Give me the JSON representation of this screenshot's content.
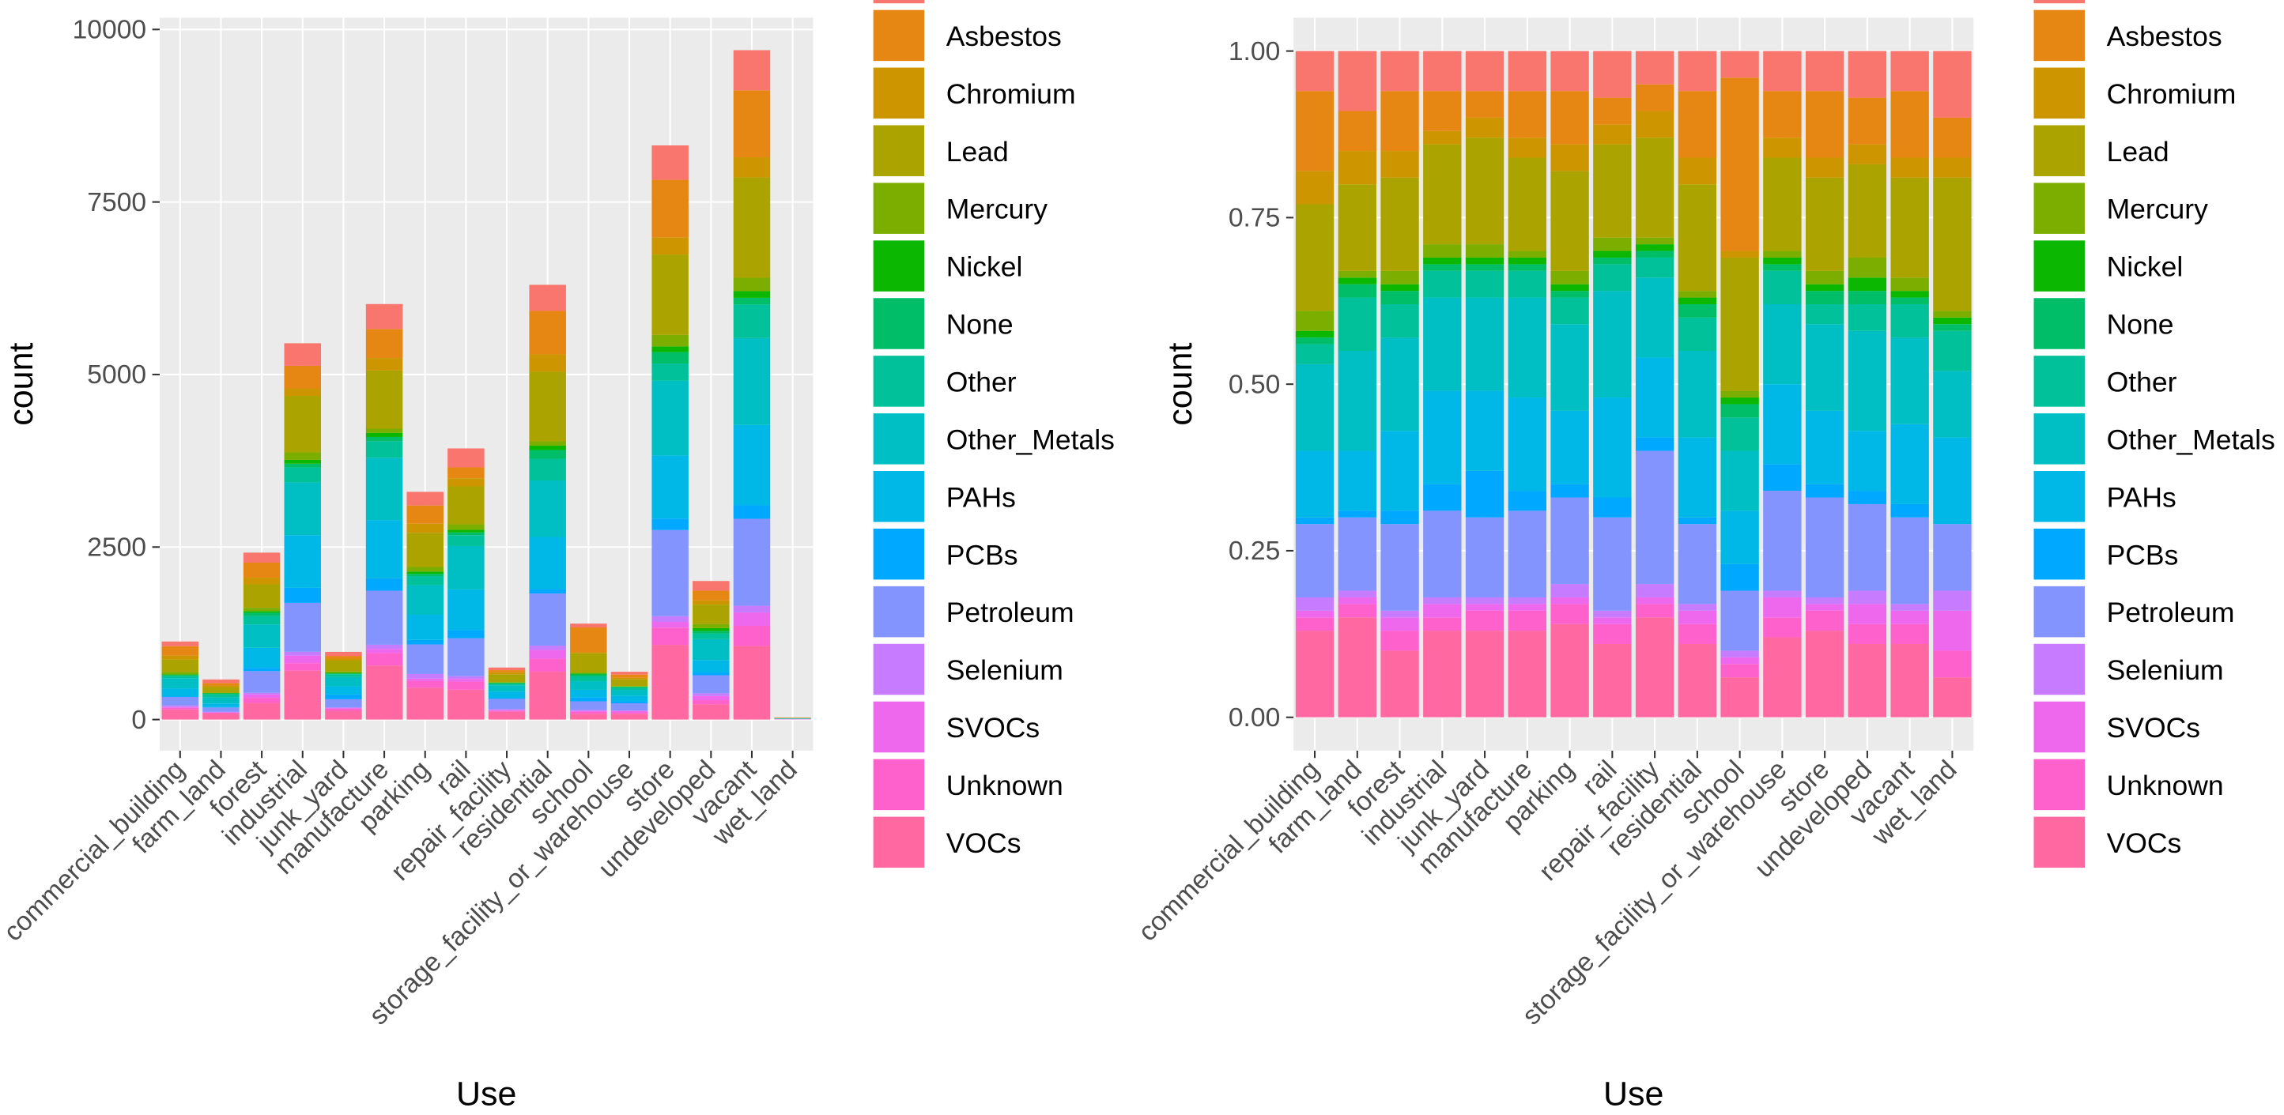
{
  "chart_data": [
    {
      "type": "bar",
      "stacked": true,
      "xlabel": "Use",
      "ylabel": "count",
      "grid": true,
      "categories": [
        "commercial_building",
        "farm_land",
        "forest",
        "industrial",
        "junk_yard",
        "manufacture",
        "parking",
        "rail",
        "repair_facility",
        "residential",
        "school",
        "storage_facility_or_warehouse",
        "store",
        "undeveloped",
        "vacant",
        "wet_land"
      ],
      "ylim": [
        -450,
        10170
      ],
      "yticks": [
        0,
        2500,
        5000,
        7500,
        10000
      ],
      "series": [
        {
          "name": null,
          "color": "#F8766D",
          "values": [
            68,
            52,
            145,
            327,
            59,
            361,
            198,
            275,
            38,
            378,
            56,
            41,
            499,
            141,
            582,
            3
          ]
        },
        {
          "name": "Asbestos",
          "color": "#E68613",
          "values": [
            136,
            35,
            218,
            327,
            39,
            421,
            264,
            157,
            30,
            630,
            361,
            48,
            832,
            141,
            970,
            2
          ]
        },
        {
          "name": "Chromium",
          "color": "#CD9600",
          "values": [
            57,
            29,
            97,
            109,
            29,
            181,
            132,
            118,
            30,
            252,
            14,
            21,
            250,
            60,
            291,
            1
          ]
        },
        {
          "name": "Lead",
          "color": "#ABA300",
          "values": [
            181,
            75,
            339,
            818,
            157,
            843,
            495,
            550,
            113,
            1008,
            278,
            97,
            1165,
            281,
            1455,
            6
          ]
        },
        {
          "name": "Mercury",
          "color": "#7CAE00",
          "values": [
            34,
            6,
            48,
            109,
            20,
            60,
            66,
            79,
            8,
            63,
            14,
            7,
            166,
            60,
            194,
            0
          ]
        },
        {
          "name": "Nickel",
          "color": "#0CB702",
          "values": [
            11,
            6,
            24,
            55,
            10,
            60,
            33,
            39,
            8,
            63,
            14,
            7,
            83,
            40,
            97,
            0
          ]
        },
        {
          "name": "None",
          "color": "#00BE67",
          "values": [
            11,
            12,
            48,
            55,
            10,
            60,
            33,
            39,
            8,
            126,
            28,
            7,
            166,
            40,
            97,
            0
          ]
        },
        {
          "name": "Other",
          "color": "#00C19A",
          "values": [
            34,
            46,
            121,
            218,
            39,
            241,
            132,
            157,
            23,
            315,
            70,
            35,
            250,
            80,
            485,
            2
          ]
        },
        {
          "name": "Other_Metals",
          "color": "#00BFC4",
          "values": [
            147,
            87,
            339,
            763,
            137,
            903,
            429,
            629,
            90,
            819,
            125,
            83,
            1082,
            302,
            1261,
            3
          ]
        },
        {
          "name": "PAHs",
          "color": "#00B8E7",
          "values": [
            113,
            52,
            290,
            763,
            118,
            843,
            363,
            590,
            90,
            756,
            111,
            83,
            915,
            181,
            1164,
            4
          ]
        },
        {
          "name": "PCBs",
          "color": "#00A9FF",
          "values": [
            11,
            6,
            48,
            218,
            69,
            181,
            66,
            118,
            15,
            63,
            56,
            28,
            166,
            40,
            194,
            0
          ]
        },
        {
          "name": "Petroleum",
          "color": "#8494FF",
          "values": [
            124,
            64,
            315,
            709,
            118,
            783,
            429,
            550,
            150,
            756,
            125,
            104,
            1248,
            261,
            1261,
            3
          ]
        },
        {
          "name": "Selenium",
          "color": "#C77CFF",
          "values": [
            23,
            6,
            24,
            55,
            10,
            60,
            66,
            39,
            15,
            63,
            14,
            7,
            83,
            40,
            97,
            1
          ]
        },
        {
          "name": "SVOCs",
          "color": "#ED68ED",
          "values": [
            11,
            6,
            48,
            109,
            10,
            60,
            33,
            39,
            8,
            126,
            14,
            21,
            83,
            60,
            194,
            2
          ]
        },
        {
          "name": "Unknown",
          "color": "#FF61CC",
          "values": [
            23,
            12,
            73,
            109,
            29,
            181,
            99,
            118,
            15,
            189,
            28,
            21,
            250,
            60,
            291,
            1
          ]
        },
        {
          "name": "VOCs",
          "color": "#FF68A1",
          "values": [
            147,
            87,
            242,
            709,
            127,
            783,
            462,
            432,
            113,
            693,
            83,
            83,
            1082,
            221,
            1067,
            2
          ]
        }
      ]
    },
    {
      "type": "bar",
      "stacked": true,
      "xlabel": "Use",
      "ylabel": "count",
      "grid": true,
      "categories": [
        "commercial_building",
        "farm_land",
        "forest",
        "industrial",
        "junk_yard",
        "manufacture",
        "parking",
        "rail",
        "repair_facility",
        "residential",
        "school",
        "storage_facility_or_warehouse",
        "store",
        "undeveloped",
        "vacant",
        "wet_land"
      ],
      "ylim": [
        -0.05,
        1.05
      ],
      "yticks": [
        {
          "value": 0,
          "label": "0.00"
        },
        {
          "value": 0.25,
          "label": "0.25"
        },
        {
          "value": 0.5,
          "label": "0.50"
        },
        {
          "value": 0.75,
          "label": "0.75"
        },
        {
          "value": 1,
          "label": "1.00"
        }
      ],
      "series": [
        {
          "name": null,
          "color": "#F8766D",
          "values": [
            0.06,
            0.09,
            0.06,
            0.06,
            0.06,
            0.06,
            0.06,
            0.07,
            0.05,
            0.06,
            0.04,
            0.06,
            0.06,
            0.07,
            0.06,
            0.1
          ]
        },
        {
          "name": "Asbestos",
          "color": "#E68613",
          "values": [
            0.12,
            0.06,
            0.09,
            0.06,
            0.04,
            0.07,
            0.08,
            0.04,
            0.04,
            0.1,
            0.26,
            0.07,
            0.1,
            0.07,
            0.1,
            0.06
          ]
        },
        {
          "name": "Chromium",
          "color": "#CD9600",
          "values": [
            0.05,
            0.05,
            0.04,
            0.02,
            0.03,
            0.03,
            0.04,
            0.03,
            0.04,
            0.04,
            0.01,
            0.03,
            0.03,
            0.03,
            0.03,
            0.03
          ]
        },
        {
          "name": "Lead",
          "color": "#ABA300",
          "values": [
            0.16,
            0.13,
            0.14,
            0.15,
            0.16,
            0.14,
            0.15,
            0.14,
            0.15,
            0.16,
            0.2,
            0.14,
            0.14,
            0.14,
            0.15,
            0.2
          ]
        },
        {
          "name": "Mercury",
          "color": "#7CAE00",
          "values": [
            0.03,
            0.01,
            0.02,
            0.02,
            0.02,
            0.01,
            0.02,
            0.02,
            0.01,
            0.01,
            0.01,
            0.01,
            0.02,
            0.03,
            0.02,
            0.01
          ]
        },
        {
          "name": "Nickel",
          "color": "#0CB702",
          "values": [
            0.01,
            0.01,
            0.01,
            0.01,
            0.01,
            0.01,
            0.01,
            0.01,
            0.01,
            0.01,
            0.01,
            0.01,
            0.01,
            0.02,
            0.01,
            0.01
          ]
        },
        {
          "name": "None",
          "color": "#00BE67",
          "values": [
            0.01,
            0.02,
            0.02,
            0.01,
            0.01,
            0.01,
            0.01,
            0.01,
            0.01,
            0.02,
            0.02,
            0.01,
            0.02,
            0.02,
            0.01,
            0.01
          ]
        },
        {
          "name": "Other",
          "color": "#00C19A",
          "values": [
            0.03,
            0.08,
            0.05,
            0.04,
            0.04,
            0.04,
            0.04,
            0.04,
            0.03,
            0.05,
            0.05,
            0.05,
            0.03,
            0.04,
            0.05,
            0.06
          ]
        },
        {
          "name": "Other_Metals",
          "color": "#00BFC4",
          "values": [
            0.13,
            0.15,
            0.14,
            0.14,
            0.14,
            0.15,
            0.13,
            0.16,
            0.12,
            0.13,
            0.09,
            0.12,
            0.13,
            0.15,
            0.13,
            0.1
          ]
        },
        {
          "name": "PAHs",
          "color": "#00B8E7",
          "values": [
            0.1,
            0.09,
            0.12,
            0.14,
            0.12,
            0.14,
            0.11,
            0.15,
            0.12,
            0.12,
            0.08,
            0.12,
            0.11,
            0.09,
            0.12,
            0.13
          ]
        },
        {
          "name": "PCBs",
          "color": "#00A9FF",
          "values": [
            0.01,
            0.01,
            0.02,
            0.04,
            0.07,
            0.03,
            0.02,
            0.03,
            0.02,
            0.01,
            0.04,
            0.04,
            0.02,
            0.02,
            0.02,
            0
          ]
        },
        {
          "name": "Petroleum",
          "color": "#8494FF",
          "values": [
            0.11,
            0.11,
            0.13,
            0.13,
            0.12,
            0.13,
            0.13,
            0.14,
            0.2,
            0.12,
            0.09,
            0.15,
            0.15,
            0.13,
            0.13,
            0.1
          ]
        },
        {
          "name": "Selenium",
          "color": "#C77CFF",
          "values": [
            0.02,
            0.01,
            0.01,
            0.01,
            0.01,
            0.01,
            0.02,
            0.01,
            0.02,
            0.01,
            0.01,
            0.01,
            0.01,
            0.02,
            0.01,
            0.03
          ]
        },
        {
          "name": "SVOCs",
          "color": "#ED68ED",
          "values": [
            0.01,
            0.01,
            0.02,
            0.02,
            0.01,
            0.01,
            0.01,
            0.01,
            0.01,
            0.02,
            0.01,
            0.03,
            0.01,
            0.03,
            0.02,
            0.06
          ]
        },
        {
          "name": "Unknown",
          "color": "#FF61CC",
          "values": [
            0.02,
            0.02,
            0.03,
            0.02,
            0.03,
            0.03,
            0.03,
            0.03,
            0.02,
            0.03,
            0.02,
            0.03,
            0.03,
            0.03,
            0.03,
            0.04
          ]
        },
        {
          "name": "VOCs",
          "color": "#FF68A1",
          "values": [
            0.13,
            0.15,
            0.1,
            0.13,
            0.13,
            0.13,
            0.14,
            0.11,
            0.15,
            0.11,
            0.06,
            0.12,
            0.13,
            0.11,
            0.11,
            0.06
          ]
        }
      ]
    }
  ]
}
